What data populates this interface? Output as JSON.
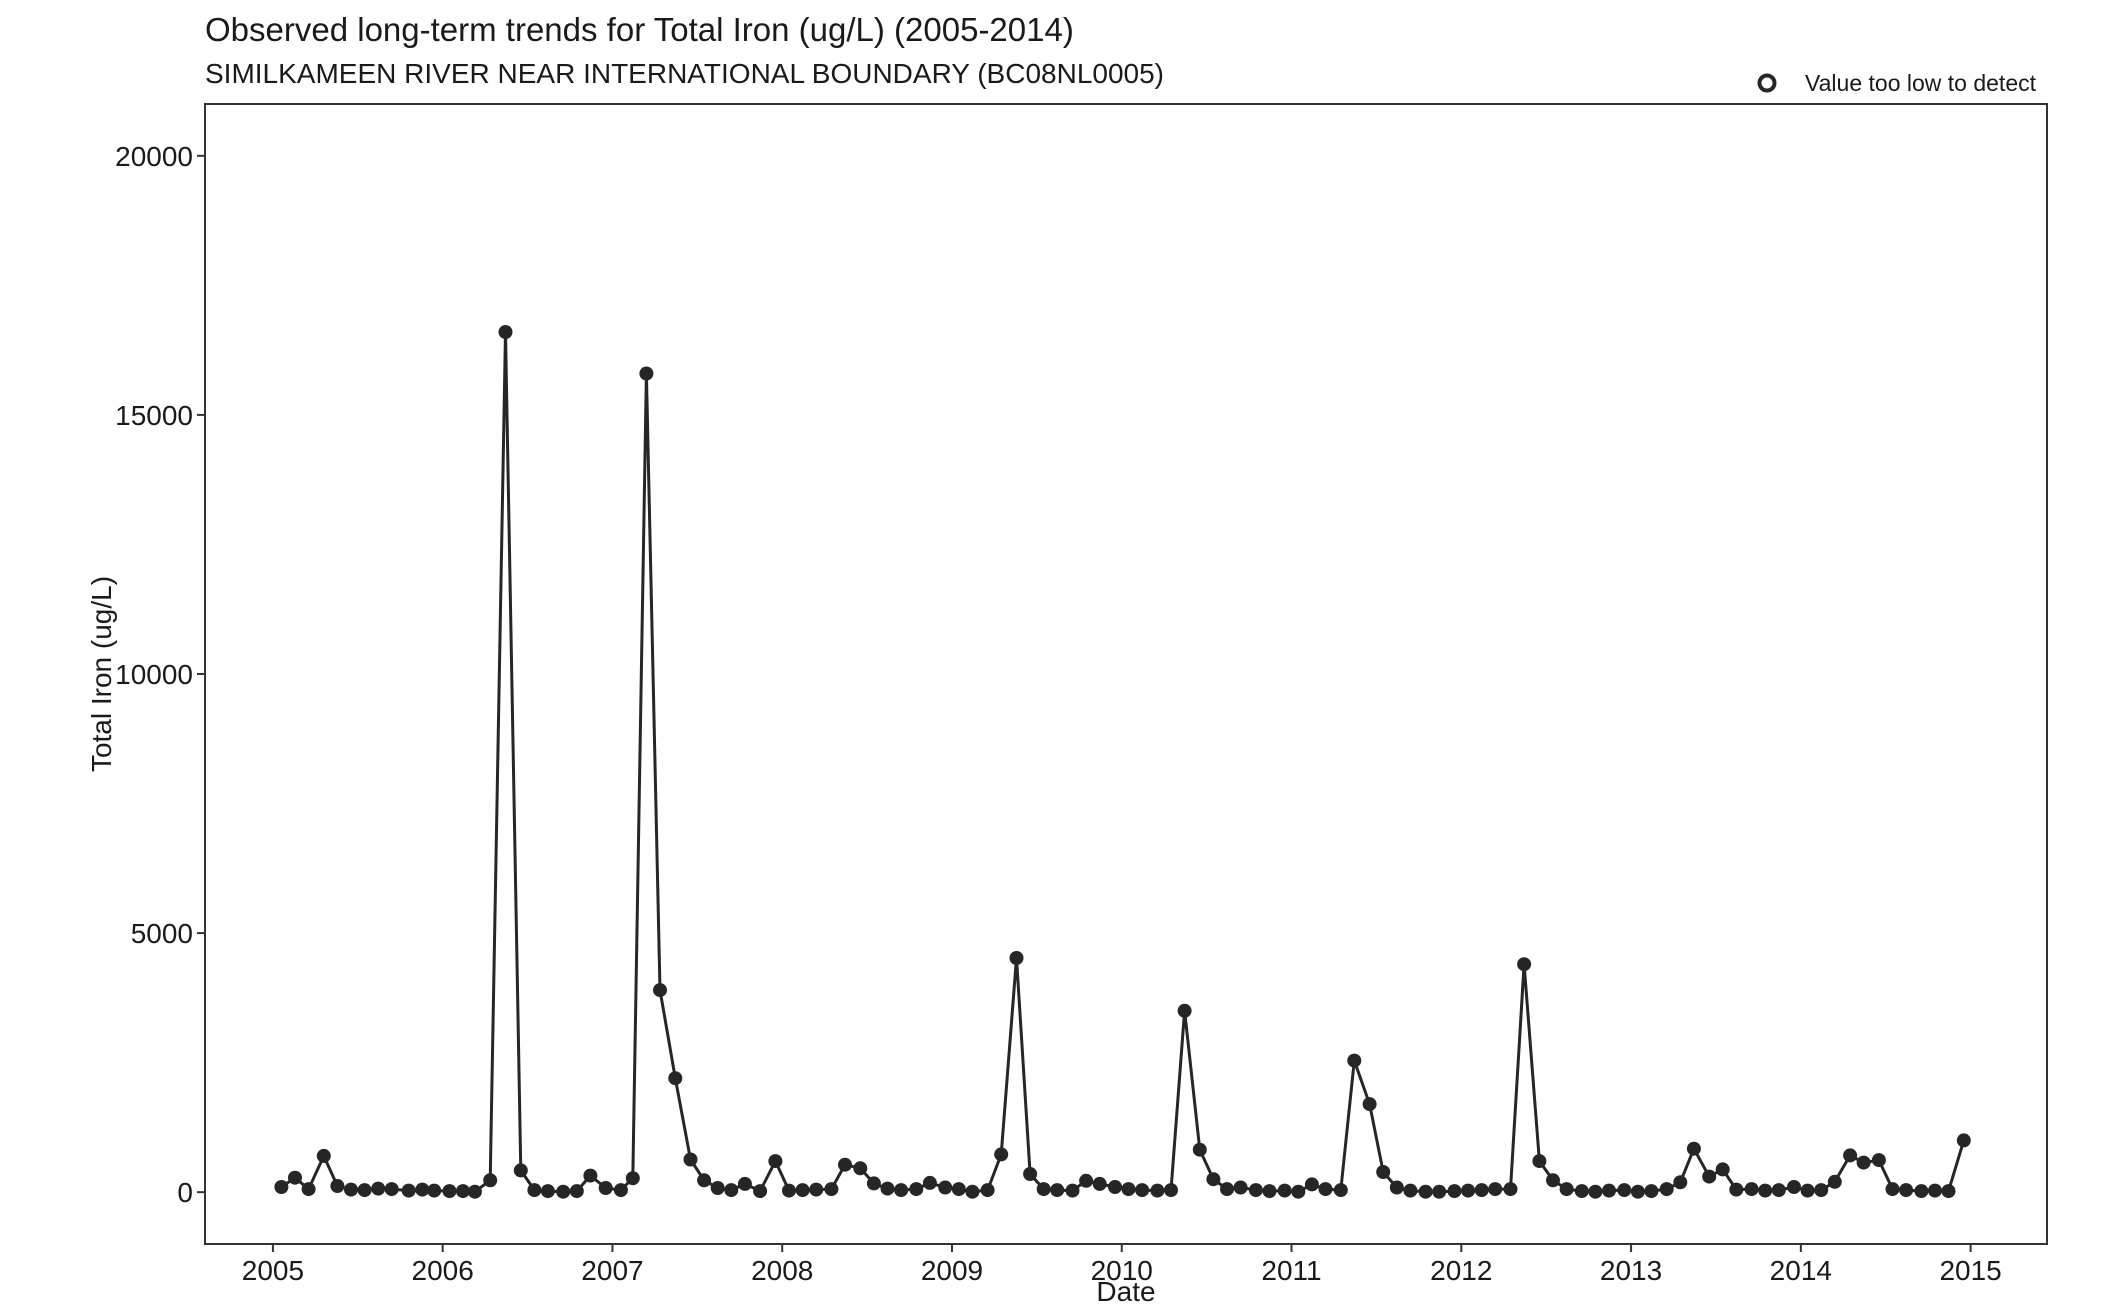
{
  "chart_data": {
    "type": "line",
    "title": "Observed long-term trends for Total Iron (ug/L) (2005-2014)",
    "subtitle": "SIMILKAMEEN RIVER NEAR INTERNATIONAL BOUNDARY (BC08NL0005)",
    "xlabel": "Date",
    "ylabel": "Total Iron (ug/L)",
    "xlim": [
      2004.6,
      2015.45
    ],
    "ylim": [
      -1000,
      21000
    ],
    "x_ticks": [
      {
        "value": 2005,
        "label": "2005"
      },
      {
        "value": 2006,
        "label": "2006"
      },
      {
        "value": 2007,
        "label": "2007"
      },
      {
        "value": 2008,
        "label": "2008"
      },
      {
        "value": 2009,
        "label": "2009"
      },
      {
        "value": 2010,
        "label": "2010"
      },
      {
        "value": 2011,
        "label": "2011"
      },
      {
        "value": 2012,
        "label": "2012"
      },
      {
        "value": 2013,
        "label": "2013"
      },
      {
        "value": 2014,
        "label": "2014"
      },
      {
        "value": 2015,
        "label": "2015"
      }
    ],
    "y_ticks": [
      {
        "value": 0,
        "label": "0"
      },
      {
        "value": 5000,
        "label": "5000"
      },
      {
        "value": 10000,
        "label": "10000"
      },
      {
        "value": 15000,
        "label": "15000"
      },
      {
        "value": 20000,
        "label": "20000"
      }
    ],
    "grid": false,
    "legend": {
      "placement": "top-right",
      "entries": [
        {
          "label": "Value too low to detect",
          "marker": "open-circle"
        }
      ]
    },
    "colors": {
      "line": "#262626",
      "point": "#262626",
      "frame": "#333333"
    },
    "series": [
      {
        "x": [
          2005.05,
          2005.13,
          2005.21,
          2005.3,
          2005.38,
          2005.46,
          2005.54,
          2005.62,
          2005.7,
          2005.8,
          2005.88,
          2005.95,
          2006.04,
          2006.12,
          2006.19,
          2006.28,
          2006.37,
          2006.46,
          2006.54,
          2006.62,
          2006.71,
          2006.79,
          2006.87,
          2006.96,
          2007.05,
          2007.12,
          2007.2,
          2007.28,
          2007.37,
          2007.46,
          2007.54,
          2007.62,
          2007.7,
          2007.78,
          2007.87,
          2007.96,
          2008.04,
          2008.12,
          2008.2,
          2008.29,
          2008.37,
          2008.46,
          2008.54,
          2008.62,
          2008.7,
          2008.79,
          2008.87,
          2008.96,
          2009.04,
          2009.12,
          2009.21,
          2009.29,
          2009.38,
          2009.46,
          2009.54,
          2009.62,
          2009.71,
          2009.79,
          2009.87,
          2009.96,
          2010.04,
          2010.12,
          2010.21,
          2010.29,
          2010.37,
          2010.46,
          2010.54,
          2010.62,
          2010.7,
          2010.79,
          2010.87,
          2010.96,
          2011.04,
          2011.12,
          2011.2,
          2011.29,
          2011.37,
          2011.46,
          2011.54,
          2011.62,
          2011.7,
          2011.79,
          2011.87,
          2011.96,
          2012.04,
          2012.12,
          2012.2,
          2012.29,
          2012.37,
          2012.46,
          2012.54,
          2012.62,
          2012.71,
          2012.79,
          2012.87,
          2012.96,
          2013.04,
          2013.12,
          2013.21,
          2013.29,
          2013.37,
          2013.46,
          2013.54,
          2013.62,
          2013.71,
          2013.79,
          2013.87,
          2013.96,
          2014.04,
          2014.12,
          2014.2,
          2014.29,
          2014.37,
          2014.46,
          2014.54,
          2014.62,
          2014.71,
          2014.79,
          2014.87,
          2014.96
        ],
        "y": [
          100,
          280,
          60,
          700,
          120,
          50,
          40,
          70,
          60,
          30,
          50,
          30,
          20,
          20,
          10,
          230,
          16600,
          420,
          40,
          20,
          10,
          20,
          320,
          80,
          40,
          270,
          15800,
          3900,
          2200,
          630,
          230,
          80,
          40,
          160,
          20,
          600,
          30,
          40,
          50,
          60,
          530,
          460,
          170,
          70,
          40,
          60,
          180,
          90,
          60,
          10,
          40,
          730,
          4520,
          350,
          60,
          40,
          30,
          220,
          160,
          100,
          60,
          40,
          30,
          40,
          3500,
          820,
          250,
          60,
          90,
          40,
          20,
          30,
          10,
          150,
          60,
          40,
          2540,
          1700,
          390,
          90,
          30,
          10,
          10,
          20,
          30,
          40,
          60,
          60,
          4400,
          600,
          230,
          60,
          20,
          10,
          30,
          40,
          10,
          20,
          60,
          190,
          840,
          300,
          440,
          50,
          60,
          30,
          40,
          100,
          30,
          40,
          200,
          710,
          570,
          620,
          60,
          40,
          20,
          30,
          20,
          1000
        ]
      }
    ]
  }
}
